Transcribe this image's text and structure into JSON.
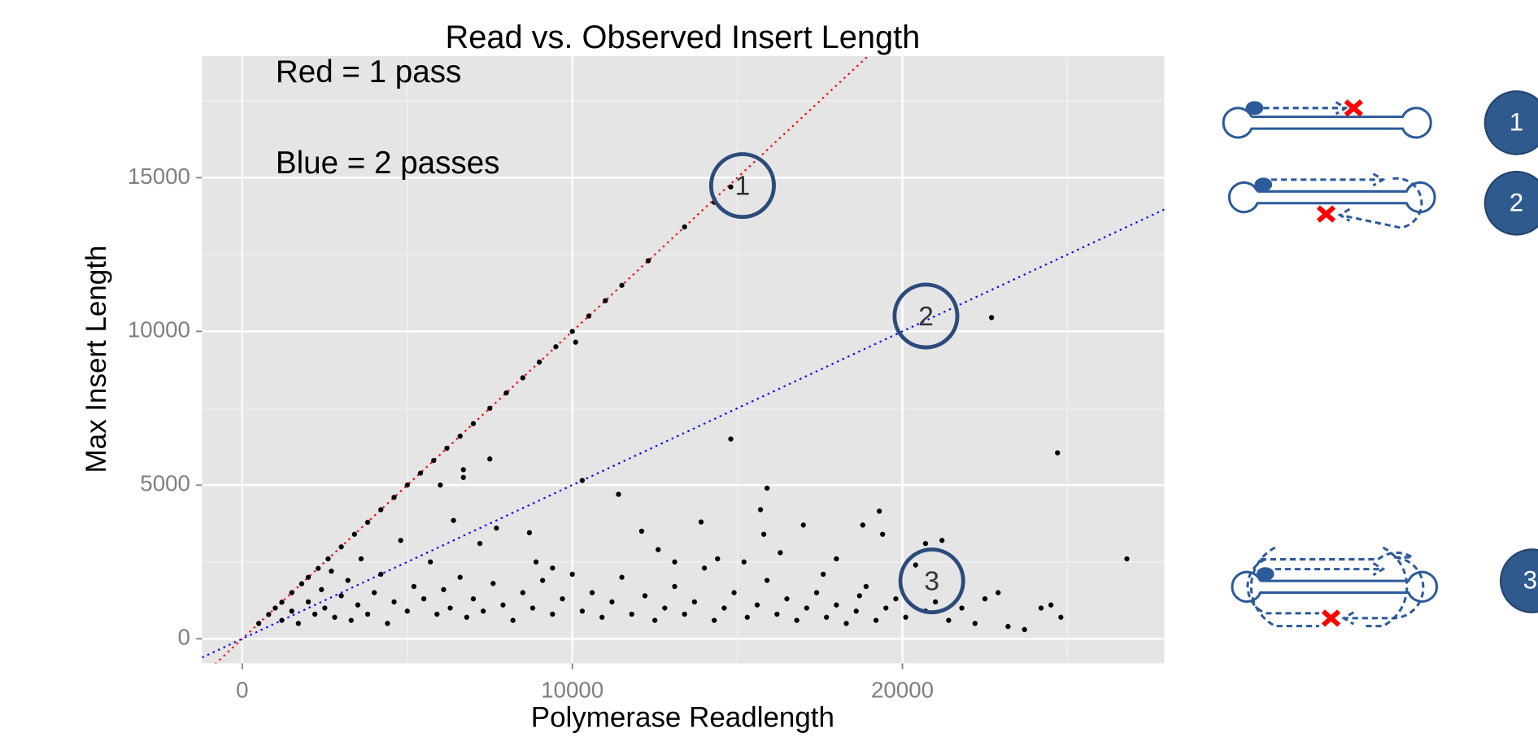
{
  "chart_data": {
    "type": "scatter",
    "title": "Read vs. Observed Insert Length",
    "x_label": "Polymerase Readlength",
    "y_label": "Max Insert Length",
    "annotations": [
      "Red = 1 pass",
      "Blue = 2 passes",
      "1",
      "2",
      "3"
    ],
    "diagram_labels": [
      "1",
      "2",
      "3"
    ],
    "color": "#000000",
    "grid": true,
    "xlim": [
      -1218,
      27934
    ],
    "ylim": [
      -798,
      18958
    ],
    "xticks": [
      0,
      10000,
      20000
    ],
    "yticks": [
      0,
      5000,
      10000,
      15000
    ],
    "ref_lines": [
      {
        "slope": 1,
        "color": "#ff0000"
      },
      {
        "slope": 0.5,
        "color": "#0000ff"
      }
    ],
    "x": [
      500,
      800,
      1000,
      1200,
      1500,
      1800,
      2000,
      2300,
      2600,
      3000,
      3400,
      3800,
      4200,
      4600,
      5000,
      5400,
      5800,
      6200,
      6600,
      7000,
      7500,
      8000,
      8500,
      9000,
      9500,
      10000,
      10500,
      11000,
      11500,
      12300,
      13400,
      14300,
      14800,
      10100,
      6000,
      6700,
      6700,
      7500,
      14800,
      10300,
      11400,
      15900,
      15700,
      15800,
      19300,
      19400,
      24700,
      26800,
      22700,
      6400,
      8700,
      12100,
      13900,
      16300,
      17000,
      18000,
      18800,
      20700,
      21200,
      7200,
      7700,
      8900,
      9400,
      12600,
      13100,
      14400,
      15200,
      17600,
      18700,
      1200,
      1500,
      1700,
      2000,
      2200,
      2400,
      2500,
      2700,
      2800,
      3000,
      3200,
      3300,
      3500,
      3600,
      3800,
      4000,
      4200,
      4400,
      4600,
      4800,
      5000,
      5200,
      5500,
      5700,
      5900,
      6100,
      6300,
      6600,
      6800,
      7000,
      7300,
      7600,
      7900,
      8200,
      8500,
      8800,
      9100,
      9400,
      9700,
      10000,
      10300,
      10600,
      10900,
      11200,
      11500,
      11800,
      12200,
      12500,
      12800,
      13100,
      13400,
      13700,
      14000,
      14300,
      14600,
      14900,
      15300,
      15600,
      15900,
      16200,
      16500,
      16800,
      17100,
      17400,
      17700,
      18000,
      18300,
      18600,
      18900,
      19200,
      19500,
      19800,
      20100,
      20400,
      20700,
      21000,
      21400,
      21800,
      22200,
      22500,
      22900,
      23200,
      23700,
      24200,
      24500,
      24800
    ],
    "values": [
      500,
      790,
      1000,
      1190,
      1500,
      1790,
      2000,
      2290,
      2600,
      2990,
      3400,
      3790,
      4200,
      4600,
      5000,
      5390,
      5800,
      6200,
      6590,
      7000,
      7500,
      8000,
      8490,
      9000,
      9500,
      10000,
      10500,
      11000,
      11500,
      12300,
      13400,
      14200,
      14700,
      9650,
      5000,
      5500,
      5250,
      5850,
      6500,
      5150,
      4700,
      4900,
      4200,
      3400,
      4150,
      3400,
      6050,
      2600,
      10450,
      3850,
      3450,
      3500,
      3800,
      2800,
      3700,
      2600,
      3700,
      3100,
      3200,
      3100,
      3600,
      2500,
      2300,
      2900,
      2500,
      2600,
      2500,
      2100,
      1400,
      600,
      900,
      500,
      1200,
      800,
      1600,
      1000,
      2200,
      700,
      1400,
      1900,
      600,
      1100,
      2600,
      800,
      1500,
      2100,
      500,
      1200,
      3200,
      900,
      1700,
      1300,
      2500,
      800,
      1600,
      1000,
      2000,
      700,
      1300,
      900,
      1800,
      1100,
      600,
      1500,
      1000,
      1900,
      800,
      1300,
      2100,
      900,
      1500,
      700,
      1200,
      2000,
      800,
      1400,
      600,
      1000,
      1700,
      800,
      1200,
      2300,
      600,
      1000,
      1500,
      700,
      1100,
      1900,
      800,
      1300,
      600,
      1000,
      1500,
      700,
      1100,
      500,
      900,
      1700,
      600,
      1000,
      1300,
      700,
      2400,
      900,
      1200,
      600,
      1000,
      500,
      1300,
      1500,
      400,
      300,
      1000,
      1100,
      700
    ]
  }
}
